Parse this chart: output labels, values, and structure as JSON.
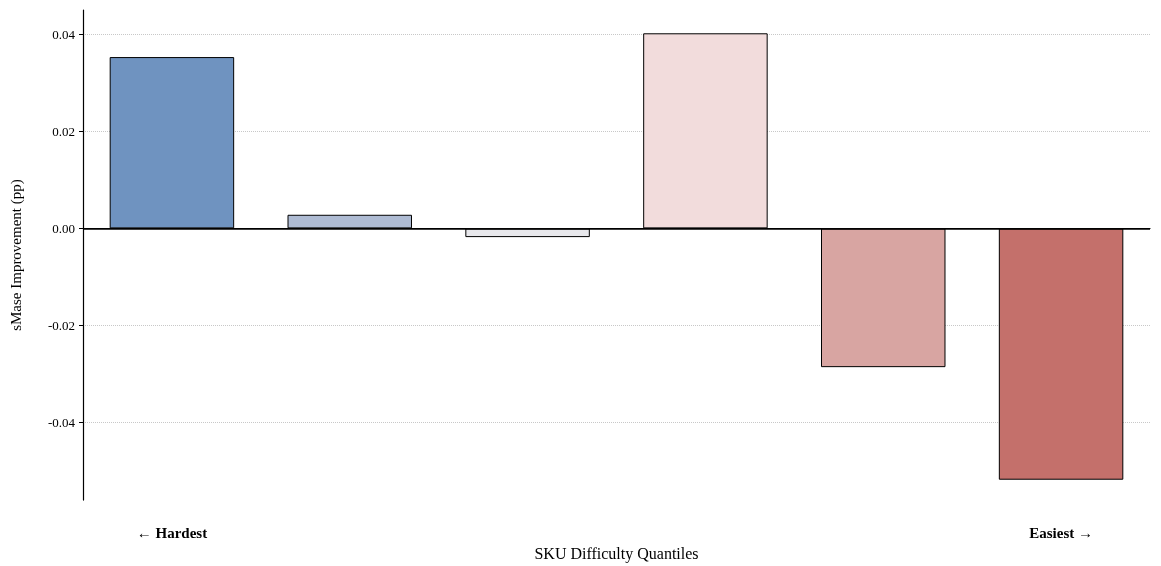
{
  "chart_data": {
    "type": "bar",
    "xlabel": "SKU Difficulty Quantiles",
    "ylabel": "sMase Improvement (pp)",
    "categories": [
      "← Hardest",
      null,
      null,
      null,
      null,
      "Easiest →"
    ],
    "values": [
      0.0353,
      0.0028,
      -0.0018,
      0.0402,
      -0.0286,
      -0.0518
    ],
    "colors": [
      "#6f93c0",
      "#aebbd3",
      "#e8e8ec",
      "#f2dcdc",
      "#d8a5a2",
      "#c4706b"
    ],
    "ylim": [
      -0.056,
      0.045
    ],
    "yticks": [
      {
        "value": -0.04,
        "label": "-0.04"
      },
      {
        "value": -0.02,
        "label": "-0.02"
      },
      {
        "value": 0,
        "label": "0.00"
      },
      {
        "value": 0.02,
        "label": "0.02"
      },
      {
        "value": 0.04,
        "label": "0.04"
      }
    ],
    "grid": "y",
    "ref_lines": [
      {
        "axis": "y",
        "value": 0,
        "color": "#000000"
      }
    ]
  }
}
